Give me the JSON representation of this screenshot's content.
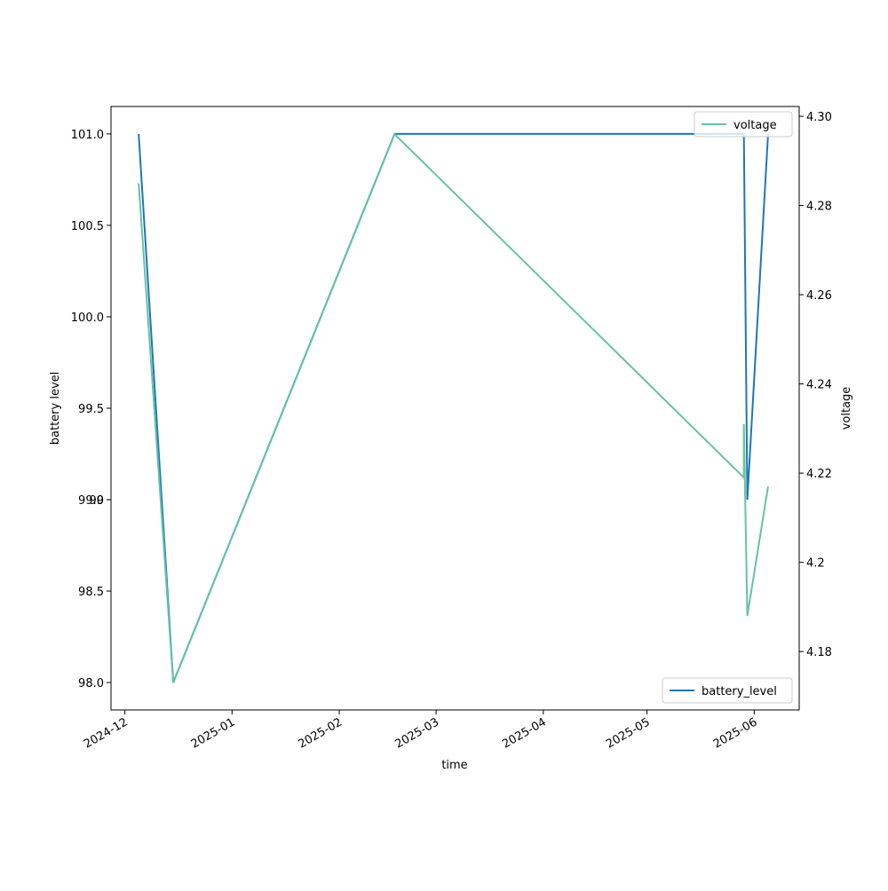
{
  "chart_data": {
    "type": "line",
    "xlabel": "time",
    "ylabel": "battery level",
    "y2label": "voltage",
    "x": [
      "2024-12-05",
      "2024-12-15",
      "2025-02-17",
      "2025-05-29",
      "2025-05-29",
      "2025-05-30",
      "2025-06-05"
    ],
    "series": [
      {
        "name": "battery_level",
        "color": "#1f77b4",
        "values": [
          101.0,
          98.0,
          101.0,
          101.0,
          101.0,
          99.0,
          101.0
        ],
        "legend": "lower right"
      },
      {
        "name": "voltage",
        "color": "#66c2a5",
        "axis": "y2",
        "values": [
          4.285,
          4.173,
          4.296,
          4.219,
          4.231,
          4.188,
          4.217
        ],
        "legend": "upper right"
      }
    ],
    "xlim": [
      "2024-11-27",
      "2025-06-14"
    ],
    "xticks": [
      "2024-12",
      "2025-01",
      "2025-02",
      "2025-03",
      "2025-04",
      "2025-05",
      "2025-06"
    ],
    "ylim": [
      97.85,
      101.15
    ],
    "yticks": [
      {
        "value": 98,
        "label": "98.0"
      },
      98.5,
      99,
      {
        "value": 99,
        "label": "99.0"
      },
      99.5,
      {
        "value": 100,
        "label": "100.0"
      },
      100.5,
      {
        "value": 101,
        "label": "101.0"
      }
    ],
    "y2lim": [
      4.1669,
      4.3022
    ],
    "y2ticks": [
      4.18,
      4.2,
      4.22,
      4.24,
      4.26,
      4.28,
      {
        "value": 4.3,
        "label": "4.30"
      }
    ]
  }
}
